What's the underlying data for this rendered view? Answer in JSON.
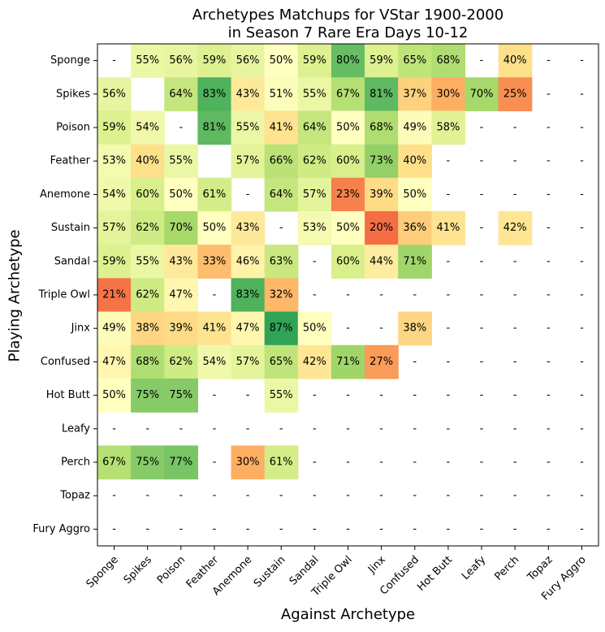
{
  "chart_data": {
    "type": "heatmap",
    "title_line1": "Archetypes Matchups for VStar 1900-2000",
    "title_line2": "in Season 7 Rare Era Days 10-12",
    "xlabel": "Against Archetype",
    "ylabel": "Playing Archetype",
    "columns": [
      "Sponge",
      "Spikes",
      "Poison",
      "Feather",
      "Anemone",
      "Sustain",
      "Sandal",
      "Triple Owl",
      "Jinx",
      "Confused",
      "Hot Butt",
      "Leafy",
      "Perch",
      "Topaz",
      "Fury Aggro"
    ],
    "rows": [
      "Sponge",
      "Spikes",
      "Poison",
      "Feather",
      "Anemone",
      "Sustain",
      "Sandal",
      "Triple Owl",
      "Jinx",
      "Confused",
      "Hot Butt",
      "Leafy",
      "Perch",
      "Topaz",
      "Fury Aggro"
    ],
    "values": [
      [
        null,
        55,
        56,
        59,
        56,
        50,
        59,
        80,
        59,
        65,
        68,
        null,
        40,
        null,
        null
      ],
      [
        56,
        "",
        64,
        83,
        43,
        51,
        55,
        67,
        81,
        37,
        30,
        70,
        25,
        null,
        null
      ],
      [
        59,
        54,
        null,
        81,
        55,
        41,
        64,
        50,
        68,
        49,
        58,
        null,
        null,
        null,
        null
      ],
      [
        53,
        40,
        55,
        "",
        57,
        66,
        62,
        60,
        73,
        40,
        null,
        null,
        null,
        null,
        null
      ],
      [
        54,
        60,
        50,
        61,
        null,
        64,
        57,
        23,
        39,
        50,
        null,
        null,
        null,
        null,
        null
      ],
      [
        57,
        62,
        70,
        50,
        43,
        null,
        53,
        50,
        20,
        36,
        41,
        null,
        42,
        null,
        null
      ],
      [
        59,
        55,
        43,
        33,
        46,
        63,
        null,
        60,
        44,
        71,
        null,
        null,
        null,
        null,
        null
      ],
      [
        21,
        62,
        47,
        null,
        83,
        32,
        null,
        null,
        null,
        null,
        null,
        null,
        null,
        null,
        null
      ],
      [
        49,
        38,
        39,
        41,
        47,
        87,
        50,
        null,
        null,
        38,
        null,
        null,
        null,
        null,
        null
      ],
      [
        47,
        68,
        62,
        54,
        57,
        65,
        42,
        71,
        27,
        null,
        null,
        null,
        null,
        null,
        null
      ],
      [
        50,
        75,
        75,
        null,
        null,
        55,
        null,
        null,
        null,
        null,
        null,
        null,
        null,
        null,
        null
      ],
      [
        null,
        null,
        null,
        null,
        null,
        null,
        null,
        null,
        null,
        null,
        null,
        null,
        null,
        null,
        null
      ],
      [
        67,
        75,
        77,
        null,
        30,
        61,
        null,
        null,
        null,
        null,
        null,
        null,
        null,
        null,
        null
      ],
      [
        null,
        null,
        null,
        null,
        null,
        null,
        null,
        null,
        null,
        null,
        null,
        null,
        null,
        null,
        null
      ],
      [
        null,
        null,
        null,
        null,
        null,
        null,
        null,
        null,
        null,
        null,
        null,
        null,
        null,
        null,
        null
      ]
    ],
    "value_suffix": "%",
    "missing_label": "-",
    "colormap": "RdYlGn",
    "color_range": [
      0,
      100
    ],
    "grid": false
  }
}
